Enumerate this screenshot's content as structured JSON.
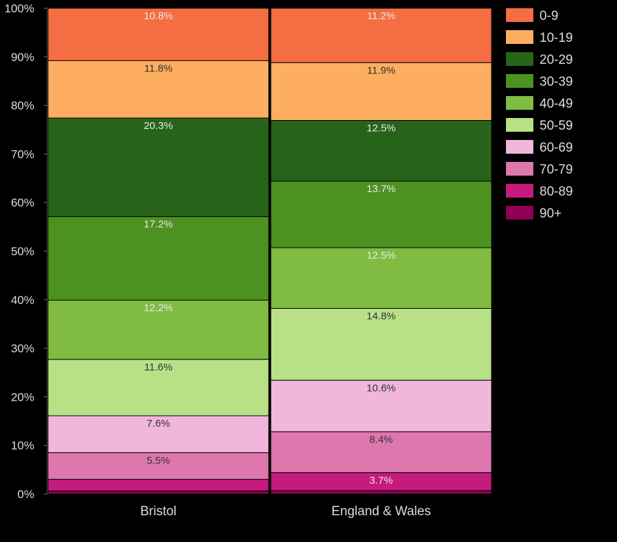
{
  "chart_data": {
    "type": "bar",
    "stacked": true,
    "percent": true,
    "categories": [
      "Bristol",
      "England & Wales"
    ],
    "series": [
      {
        "name": "0-9",
        "color": "#f46d43",
        "values": [
          10.8,
          11.2
        ]
      },
      {
        "name": "10-19",
        "color": "#fdae61",
        "values": [
          11.8,
          11.9
        ]
      },
      {
        "name": "20-29",
        "color": "#276419",
        "values": [
          20.3,
          12.5
        ]
      },
      {
        "name": "30-39",
        "color": "#4d9221",
        "values": [
          17.2,
          13.7
        ]
      },
      {
        "name": "40-49",
        "color": "#7fbc41",
        "values": [
          12.2,
          12.5
        ]
      },
      {
        "name": "50-59",
        "color": "#b8e186",
        "values": [
          11.6,
          14.8
        ]
      },
      {
        "name": "60-69",
        "color": "#f1b6da",
        "values": [
          7.6,
          10.6
        ]
      },
      {
        "name": "70-79",
        "color": "#de77ae",
        "values": [
          5.5,
          8.4
        ]
      },
      {
        "name": "80-89",
        "color": "#c51b7d",
        "values": [
          2.4,
          3.7
        ]
      },
      {
        "name": "90+",
        "color": "#8e0152",
        "values": [
          0.6,
          0.7
        ]
      }
    ],
    "data_labels": [
      [
        "10.8%",
        "11.2%"
      ],
      [
        "11.8%",
        "11.9%"
      ],
      [
        "20.3%",
        "12.5%"
      ],
      [
        "17.2%",
        "13.7%"
      ],
      [
        "12.2%",
        "12.5%"
      ],
      [
        "11.6%",
        "14.8%"
      ],
      [
        "7.6%",
        "10.6%"
      ],
      [
        "5.5%",
        "8.4%"
      ],
      [
        "",
        "3.7%"
      ],
      [
        "",
        ""
      ]
    ],
    "yticks": [
      "0%",
      "10%",
      "20%",
      "30%",
      "40%",
      "50%",
      "60%",
      "70%",
      "80%",
      "90%",
      "100%"
    ],
    "ylim": [
      0,
      100
    ],
    "title": "",
    "xlabel": "",
    "ylabel": "",
    "legend_position": "right",
    "grid": false
  }
}
